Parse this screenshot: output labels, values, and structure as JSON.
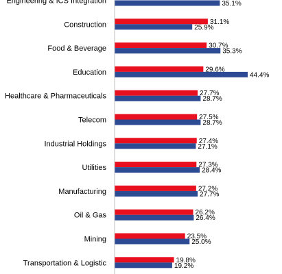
{
  "chart_data": {
    "type": "bar",
    "orientation": "horizontal",
    "categories": [
      "Engineering & ICS Integration",
      "Construction",
      "Food & Beverage",
      "Education",
      "Healthcare & Pharmaceuticals",
      "Telecom",
      "Industrial Holdings",
      "Utilities",
      "Manufacturing",
      "Oil & Gas",
      "Mining",
      "Transportation & Logistic"
    ],
    "series": [
      {
        "color": "#e8101e",
        "values": [
          null,
          31.1,
          30.7,
          29.6,
          27.7,
          27.5,
          27.4,
          27.3,
          27.2,
          26.2,
          23.5,
          19.8
        ],
        "labels": [
          "",
          "31.1%",
          "30.7%",
          "29.6%",
          "27.7%",
          "27.5%",
          "27.4%",
          "27.3%",
          "27.2%",
          "26.2%",
          "23.5%",
          "19.8%"
        ]
      },
      {
        "color": "#2c4b93",
        "values": [
          35.1,
          25.9,
          35.3,
          44.4,
          28.7,
          28.7,
          27.1,
          28.4,
          27.7,
          26.4,
          25.0,
          19.2
        ],
        "labels": [
          "35.1%",
          "25.9%",
          "35.3%",
          "44.4%",
          "28.7%",
          "28.7%",
          "27.1%",
          "28.4%",
          "27.7%",
          "26.4%",
          "25.0%",
          "19.2%"
        ]
      }
    ],
    "xlim": [
      0,
      50
    ],
    "grid": false,
    "legend": "none"
  }
}
